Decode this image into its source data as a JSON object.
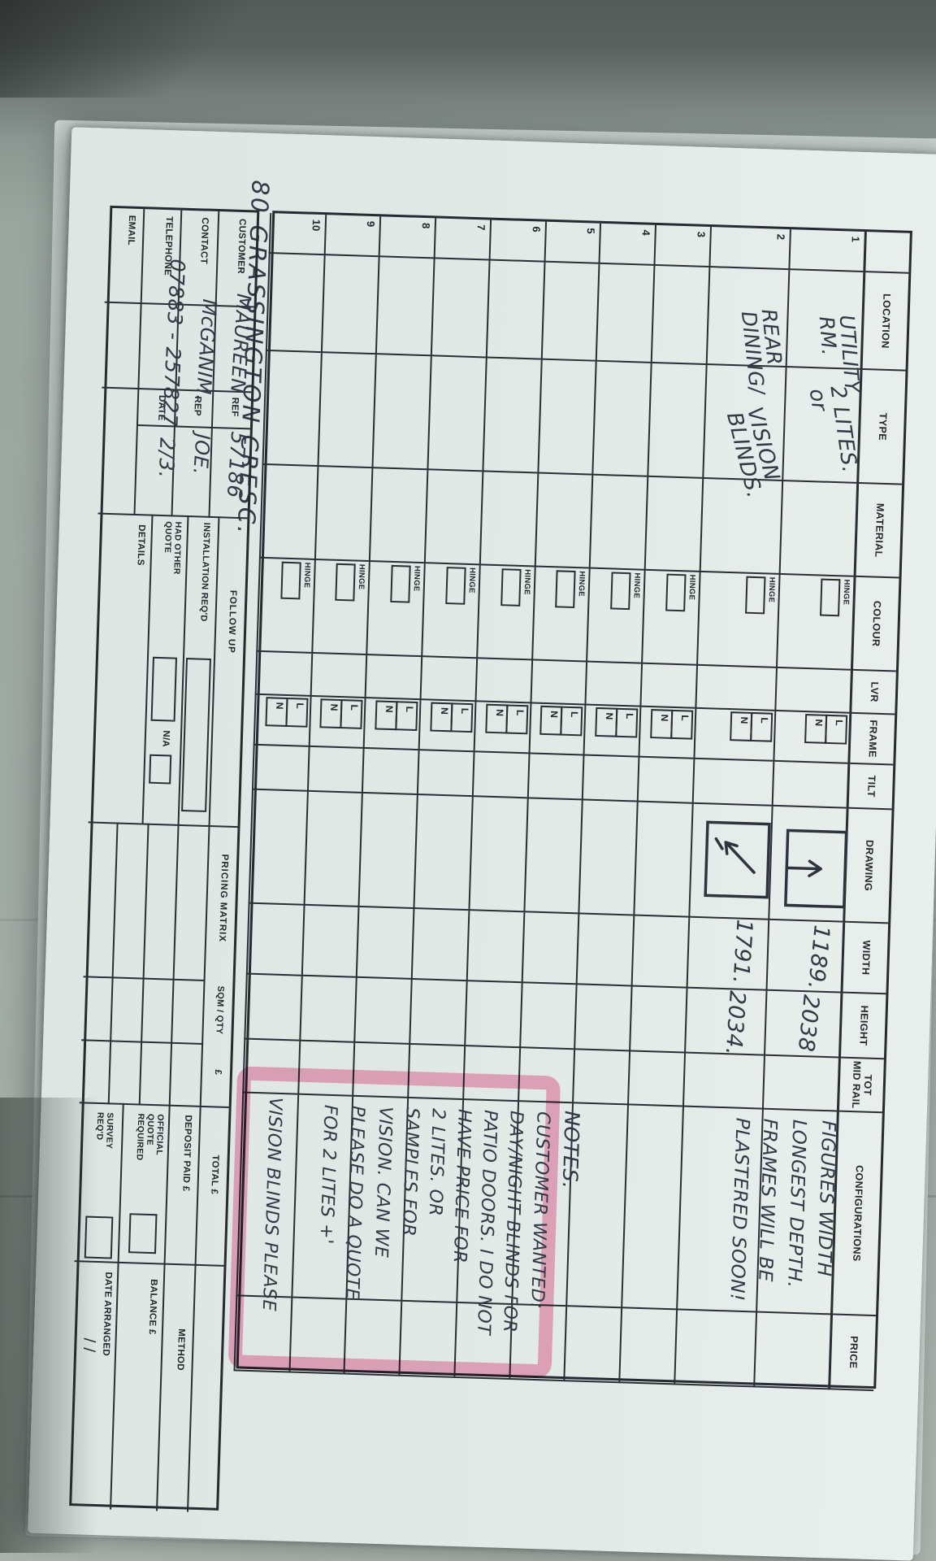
{
  "table": {
    "headers": [
      "",
      "LOCATION",
      "TYPE",
      "MATERIAL",
      "COLOUR",
      "LVR",
      "FRAME",
      "TILT",
      "DRAWING",
      "WIDTH",
      "HEIGHT",
      "TOT\nMID RAIL",
      "CONFIGURATIONS",
      "PRICE"
    ],
    "hinge_label": "HINGE",
    "frame_l": "L",
    "frame_n": "N",
    "rows": [
      {
        "num": "1"
      },
      {
        "num": "2"
      },
      {
        "num": "3"
      },
      {
        "num": "4"
      },
      {
        "num": "5"
      },
      {
        "num": "6"
      },
      {
        "num": "7"
      },
      {
        "num": "8"
      },
      {
        "num": "9"
      },
      {
        "num": "10"
      }
    ]
  },
  "entries": {
    "location_1": "UTILITY\nRM.",
    "type_1": "2 LITES.\n   or",
    "location_2": "REAR\nDINING/",
    "type_2": "VISION\n  BLINDS.",
    "width_1": "1189.",
    "height_1": "2038",
    "width_2": "1791.",
    "height_2": "2034.",
    "config_lines": [
      "FIGURES WIDTH",
      "LONGEST DEPTH.",
      "FRAMES WILL BE",
      "PLASTERED SOON!"
    ]
  },
  "notes": {
    "title": "NOTES.",
    "lines": [
      "CUSTOMER WANTED:",
      "DAY/NIGHT BLINDS FOR",
      "PATIO DOORS. I DO NOT",
      "HAVE PRICE FOR",
      "2 LITES. OR",
      "SAMPLES FOR",
      "VISION. CAN WE",
      "PLEASE DO A QUOTE",
      "FOR 2 LITES +'",
      "VISION BLINDS PLEASE"
    ]
  },
  "address": "80 GRASSINGTON CRESC.",
  "footer": {
    "customer_label": "CUSTOMER",
    "customer": "MAUREEN",
    "contact_label": "CONTACT",
    "contact": "McGANIM.",
    "telephone_label": "TELEPHONE",
    "telephone": "07883 - 257827",
    "email_label": "EMAIL",
    "ref_label": "REF",
    "ref": "57186",
    "rep_label": "REP",
    "rep": "JOE.",
    "date_label": "DATE",
    "date": "2/3.",
    "follow_up": "FOLLOW UP",
    "installation": "INSTALLATION REQ'D",
    "had_other_quote": "HAD OTHER\nQUOTE",
    "na": "N/A",
    "details": "DETAILS",
    "pricing_matrix": "PRICING MATRIX",
    "sqm_qty": "SQM / QTY",
    "pound": "£",
    "total": "TOTAL £",
    "deposit": "DEPOSIT PAID £",
    "official_quote": "OFFICIAL\nQUOTE\nREQUIRED",
    "survey": "SURVEY\nREQ'D",
    "method": "METHOD",
    "balance": "BALANCE £",
    "date_arranged": "DATE ARRANGED",
    "date_slashes": "/        /"
  },
  "colors": {
    "pink": "#ef82aa",
    "ink": "#2f333d"
  }
}
